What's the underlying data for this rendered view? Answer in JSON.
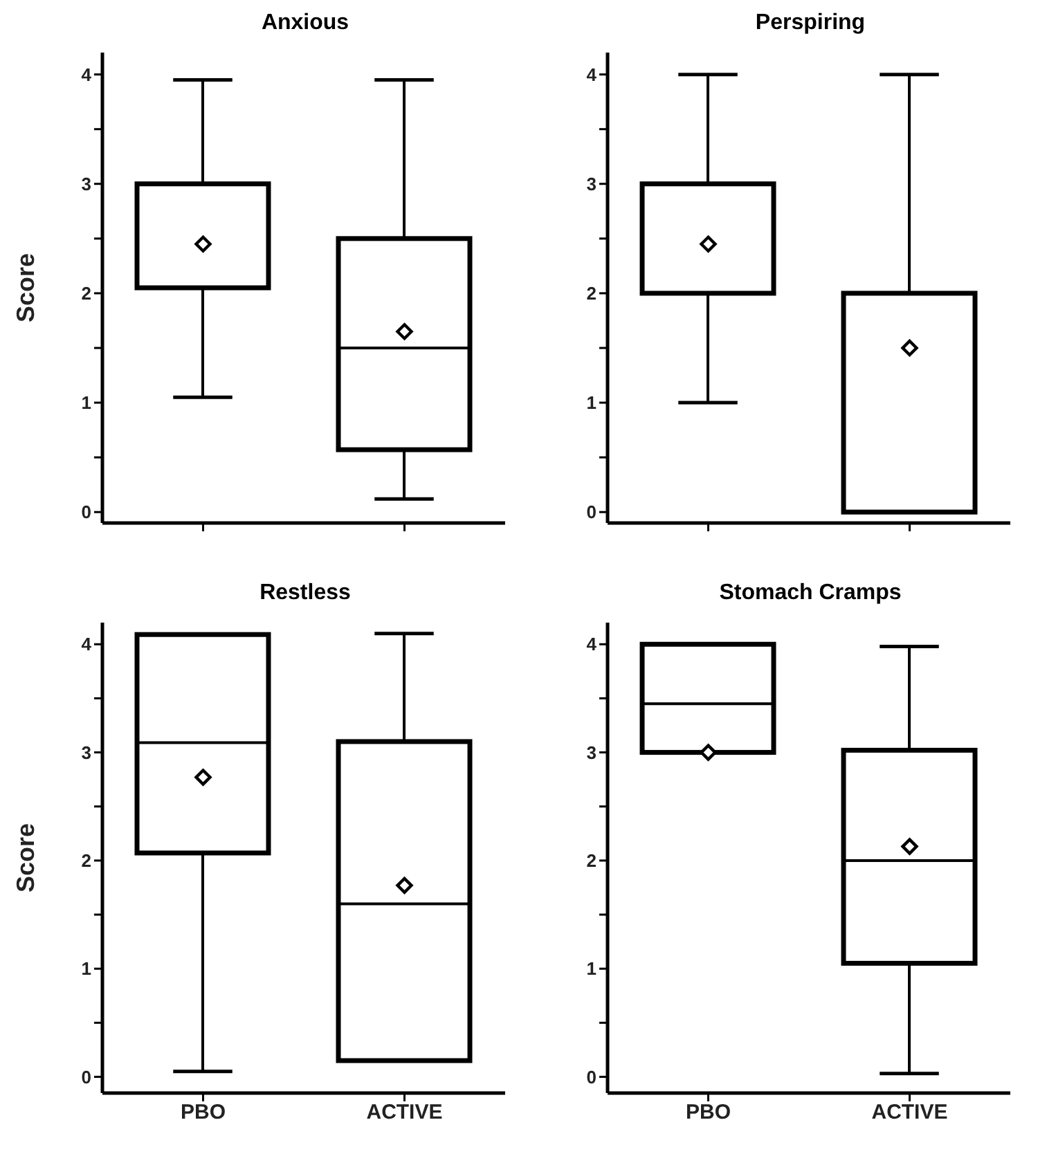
{
  "chart_data": [
    {
      "type": "box",
      "title": "Anxious",
      "ylabel": "Score",
      "categories": [
        null,
        null
      ],
      "marker": "diamond",
      "tick_labels": "y",
      "ylim": [
        -0.1,
        4.2
      ],
      "yticks": [
        0,
        {
          "value": 0.5,
          "label": null
        },
        1,
        {
          "value": 1.5,
          "label": null
        },
        2,
        {
          "value": 2.5,
          "label": null
        },
        3,
        {
          "value": 3.5,
          "label": null
        },
        4
      ],
      "boxes": [
        {
          "low": 1.05,
          "q1": 2.05,
          "median": 2.05,
          "q3": 3.0,
          "high": 3.95,
          "mean": 2.45
        },
        {
          "low": 0.12,
          "q1": 0.57,
          "median": 1.5,
          "q3": 2.5,
          "high": 3.95,
          "mean": 1.65
        }
      ]
    },
    {
      "type": "box",
      "title": "Perspiring",
      "categories": [
        null,
        null
      ],
      "marker": "diamond",
      "tick_labels": "y",
      "ylim": [
        -0.1,
        4.2
      ],
      "yticks": [
        0,
        {
          "value": 0.5,
          "label": null
        },
        1,
        {
          "value": 1.5,
          "label": null
        },
        2,
        {
          "value": 2.5,
          "label": null
        },
        3,
        {
          "value": 3.5,
          "label": null
        },
        4
      ],
      "boxes": [
        {
          "low": 1.0,
          "q1": 2.0,
          "median": 2.0,
          "q3": 3.0,
          "high": 4.0,
          "mean": 2.45
        },
        {
          "low": 0.0,
          "q1": 0.0,
          "median": 2.0,
          "q3": 2.0,
          "high": 4.0,
          "mean": 1.5
        }
      ]
    },
    {
      "type": "box",
      "title": "Restless",
      "ylabel": "Score",
      "categories": [
        "PBO",
        "ACTIVE"
      ],
      "marker": "diamond",
      "ylim": [
        -0.15,
        4.2
      ],
      "yticks": [
        0,
        {
          "value": 0.5,
          "label": null
        },
        1,
        {
          "value": 1.5,
          "label": null
        },
        2,
        {
          "value": 2.5,
          "label": null
        },
        3,
        {
          "value": 3.5,
          "label": null
        },
        4
      ],
      "boxes": [
        {
          "low": 0.05,
          "q1": 2.07,
          "median": 3.09,
          "q3": 4.09,
          "high": 4.09,
          "mean": 2.77
        },
        {
          "low": 0.15,
          "q1": 0.15,
          "median": 1.6,
          "q3": 3.1,
          "high": 4.1,
          "mean": 1.77
        }
      ]
    },
    {
      "type": "box",
      "title": "Stomach Cramps",
      "categories": [
        "PBO",
        "ACTIVE"
      ],
      "marker": "diamond",
      "ylim": [
        -0.15,
        4.2
      ],
      "yticks": [
        0,
        {
          "value": 0.5,
          "label": null
        },
        1,
        {
          "value": 1.5,
          "label": null
        },
        2,
        {
          "value": 2.5,
          "label": null
        },
        3,
        {
          "value": 3.5,
          "label": null
        },
        4
      ],
      "boxes": [
        {
          "low": 3.0,
          "q1": 3.0,
          "median": 3.45,
          "q3": 4.0,
          "high": 4.0,
          "mean": 3.0
        },
        {
          "low": 0.03,
          "q1": 1.05,
          "median": 2.0,
          "q3": 3.02,
          "high": 3.98,
          "mean": 2.13
        }
      ]
    }
  ]
}
